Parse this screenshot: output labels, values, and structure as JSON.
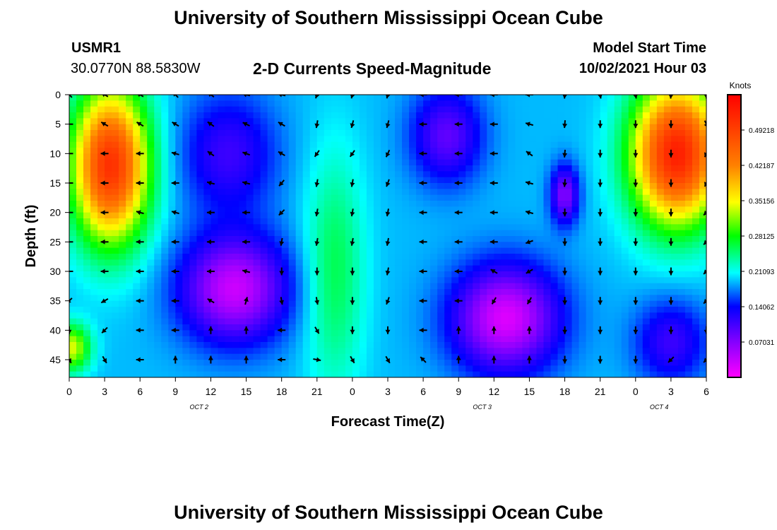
{
  "header": {
    "title": "University of Southern Mississippi Ocean Cube",
    "station": "USMR1",
    "coords": "30.0770N  88.5830W",
    "subtitle": "2-D Currents Speed-Magnitude",
    "model_label": "Model Start Time",
    "model_time": "10/02/2021 Hour 03"
  },
  "footer": {
    "title": "University of Southern Mississippi Ocean Cube"
  },
  "chart_data": {
    "type": "heatmap",
    "title": "2-D Currents Speed-Magnitude",
    "xlabel": "Forecast Time(Z)",
    "ylabel": "Depth (ft)",
    "x_hours": [
      0,
      54
    ],
    "ylim": [
      0,
      48
    ],
    "x_tick_labels": [
      "0",
      "3",
      "6",
      "9",
      "12",
      "15",
      "18",
      "21",
      "0",
      "3",
      "6",
      "9",
      "12",
      "15",
      "18",
      "21",
      "0",
      "3",
      "6"
    ],
    "y_ticks": [
      0,
      5,
      10,
      15,
      20,
      25,
      30,
      35,
      40,
      45
    ],
    "date_labels": [
      {
        "hour": 11,
        "label": "OCT 2"
      },
      {
        "hour": 35,
        "label": "OCT 3"
      },
      {
        "hour": 50,
        "label": "OCT 4"
      }
    ],
    "colorbar": {
      "unit": "Knots",
      "range": [
        0,
        0.5625
      ],
      "tick_labels": [
        "0.49218",
        "0.42187",
        "0.35156",
        "0.28125",
        "0.21093",
        "0.14062",
        "0.07031"
      ],
      "tick_values": [
        0.49218,
        0.42187,
        0.35156,
        0.28125,
        0.21093,
        0.14062,
        0.07031
      ]
    },
    "speed_features": [
      {
        "name": "nearshore-high-left",
        "hour": 3.5,
        "depth": 12,
        "sx": 3.2,
        "sy": 13,
        "amp": 0.32
      },
      {
        "name": "high-left-bottom",
        "hour": 0.2,
        "depth": 43,
        "sx": 1.6,
        "sy": 4,
        "amp": 0.15
      },
      {
        "name": "high-right",
        "hour": 51.5,
        "depth": 10,
        "sx": 3.8,
        "sy": 12,
        "amp": 0.34
      },
      {
        "name": "low-mid-left",
        "hour": 14,
        "depth": 33,
        "sx": 4.5,
        "sy": 9,
        "amp": -0.16
      },
      {
        "name": "low-upper-left",
        "hour": 13.5,
        "depth": 10,
        "sx": 4,
        "sy": 10,
        "amp": -0.08
      },
      {
        "name": "low-center",
        "hour": 37,
        "depth": 38,
        "sx": 4.5,
        "sy": 9,
        "amp": -0.17
      },
      {
        "name": "low-upper-center",
        "hour": 32,
        "depth": 7,
        "sx": 3,
        "sy": 8,
        "amp": -0.1
      },
      {
        "name": "low-spot",
        "hour": 42,
        "depth": 17,
        "sx": 1.2,
        "sy": 5,
        "amp": -0.12
      },
      {
        "name": "low-lower-right",
        "hour": 51,
        "depth": 42,
        "sx": 3,
        "sy": 7,
        "amp": -0.08
      },
      {
        "name": "mid-high-center",
        "hour": 22.5,
        "depth": 30,
        "sx": 2.5,
        "sy": 20,
        "amp": 0.07
      }
    ],
    "vector_hours": [
      0,
      3,
      6,
      9,
      12,
      15,
      18,
      21,
      24,
      27,
      30,
      33,
      36,
      39,
      42,
      45,
      48,
      51,
      54
    ],
    "vector_depths": [
      0,
      5,
      10,
      15,
      20,
      25,
      30,
      35,
      40,
      45
    ],
    "vector_dirs_deg": [
      [
        315,
        300,
        300,
        315,
        305,
        285,
        285,
        200,
        195,
        195,
        270,
        270,
        270,
        270,
        185,
        170,
        170,
        185,
        180
      ],
      [
        270,
        300,
        300,
        300,
        305,
        295,
        300,
        190,
        195,
        195,
        270,
        270,
        270,
        285,
        185,
        180,
        180,
        180,
        155
      ],
      [
        270,
        270,
        270,
        285,
        305,
        290,
        300,
        215,
        215,
        205,
        270,
        270,
        270,
        305,
        185,
        180,
        180,
        180,
        205
      ],
      [
        270,
        270,
        270,
        270,
        285,
        285,
        220,
        190,
        190,
        200,
        270,
        270,
        270,
        285,
        185,
        180,
        180,
        180,
        205
      ],
      [
        270,
        270,
        285,
        285,
        270,
        270,
        225,
        190,
        190,
        190,
        270,
        270,
        270,
        285,
        180,
        180,
        180,
        180,
        225
      ],
      [
        270,
        270,
        270,
        270,
        270,
        270,
        190,
        190,
        190,
        190,
        270,
        270,
        270,
        250,
        180,
        180,
        180,
        180,
        225
      ],
      [
        270,
        270,
        270,
        270,
        270,
        285,
        180,
        180,
        180,
        190,
        270,
        270,
        300,
        240,
        180,
        180,
        180,
        180,
        225
      ],
      [
        225,
        240,
        270,
        270,
        300,
        15,
        170,
        170,
        180,
        200,
        270,
        270,
        210,
        210,
        180,
        180,
        180,
        180,
        225
      ],
      [
        180,
        225,
        270,
        270,
        360,
        360,
        270,
        150,
        180,
        180,
        270,
        360,
        360,
        360,
        180,
        180,
        180,
        180,
        180
      ],
      [
        150,
        150,
        270,
        360,
        360,
        360,
        270,
        100,
        150,
        150,
        315,
        360,
        360,
        360,
        180,
        180,
        180,
        225,
        225
      ]
    ]
  }
}
